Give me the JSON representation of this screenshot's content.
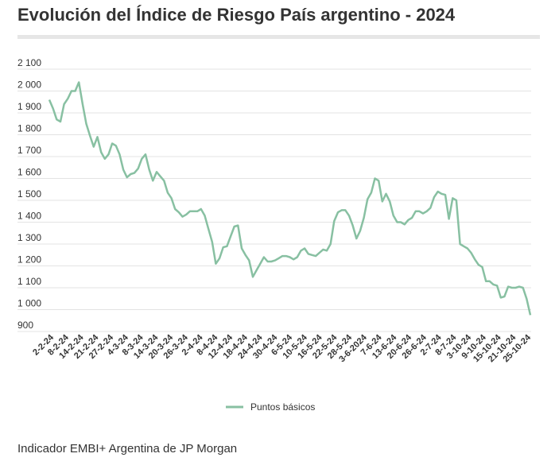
{
  "title": "Evolución del Índice de Riesgo País argentino - 2024",
  "footer": "Indicador EMBI+ Argentina de JP Morgan",
  "colors": {
    "line": "#88c0a2",
    "grid": "#e3e3e3",
    "text": "#333333"
  },
  "chart_data": {
    "type": "line",
    "title": "Evolución del Índice de Riesgo País argentino - 2024",
    "xlabel": "",
    "ylabel": "",
    "ylim": [
      900,
      2100
    ],
    "yticks": [
      "2 100",
      "2 000",
      "1 900",
      "1 800",
      "1 700",
      "1 600",
      "1 500",
      "1 400",
      "1 300",
      "1 200",
      "1 100",
      "1 000",
      "900"
    ],
    "ytick_values": [
      2100,
      2000,
      1900,
      1800,
      1700,
      1600,
      1500,
      1400,
      1300,
      1200,
      1100,
      1000,
      900
    ],
    "x_tick_labels": [
      "2-2-24",
      "8-2-24",
      "14-2-24",
      "21-2-24",
      "27-2-24",
      "4-3-24",
      "8-3-24",
      "14-3-24",
      "20-3-24",
      "26-3-24",
      "2-4-24",
      "8-4-24",
      "12-4-24",
      "18-4-24",
      "24-4-24",
      "30-4-24",
      "6-5-24",
      "10-5-24",
      "16-5-24",
      "22-5-24",
      "28-5-24",
      "3-6-2024",
      "7-6-24",
      "13-6-24",
      "20-6-24",
      "26-6-24",
      "2-7-24",
      "8-7-24",
      "3-10-24",
      "9-10-24",
      "15-10-24",
      "21-10-24",
      "25-10-24"
    ],
    "grid": true,
    "legend_position": "bottom-center",
    "series": [
      {
        "name": "Puntos básicos",
        "color": "#88c0a2",
        "values": [
          1960,
          1920,
          1870,
          1860,
          1940,
          1965,
          2000,
          2000,
          2040,
          1940,
          1850,
          1795,
          1745,
          1790,
          1720,
          1690,
          1710,
          1760,
          1750,
          1710,
          1640,
          1605,
          1620,
          1625,
          1645,
          1690,
          1710,
          1640,
          1590,
          1630,
          1610,
          1590,
          1535,
          1510,
          1460,
          1445,
          1425,
          1435,
          1450,
          1450,
          1450,
          1460,
          1430,
          1370,
          1310,
          1210,
          1235,
          1285,
          1290,
          1335,
          1380,
          1385,
          1280,
          1250,
          1225,
          1150,
          1180,
          1210,
          1240,
          1220,
          1220,
          1225,
          1235,
          1245,
          1245,
          1240,
          1230,
          1240,
          1270,
          1280,
          1255,
          1250,
          1245,
          1260,
          1275,
          1270,
          1300,
          1405,
          1445,
          1455,
          1455,
          1430,
          1385,
          1325,
          1360,
          1420,
          1505,
          1535,
          1600,
          1590,
          1495,
          1530,
          1495,
          1430,
          1400,
          1400,
          1390,
          1410,
          1420,
          1450,
          1450,
          1440,
          1450,
          1465,
          1515,
          1540,
          1530,
          1525,
          1415,
          1510,
          1500,
          1300,
          1290,
          1280,
          1260,
          1230,
          1205,
          1195,
          1130,
          1130,
          1115,
          1110,
          1055,
          1060,
          1105,
          1100,
          1100,
          1105,
          1100,
          1050,
          975
        ]
      }
    ]
  }
}
